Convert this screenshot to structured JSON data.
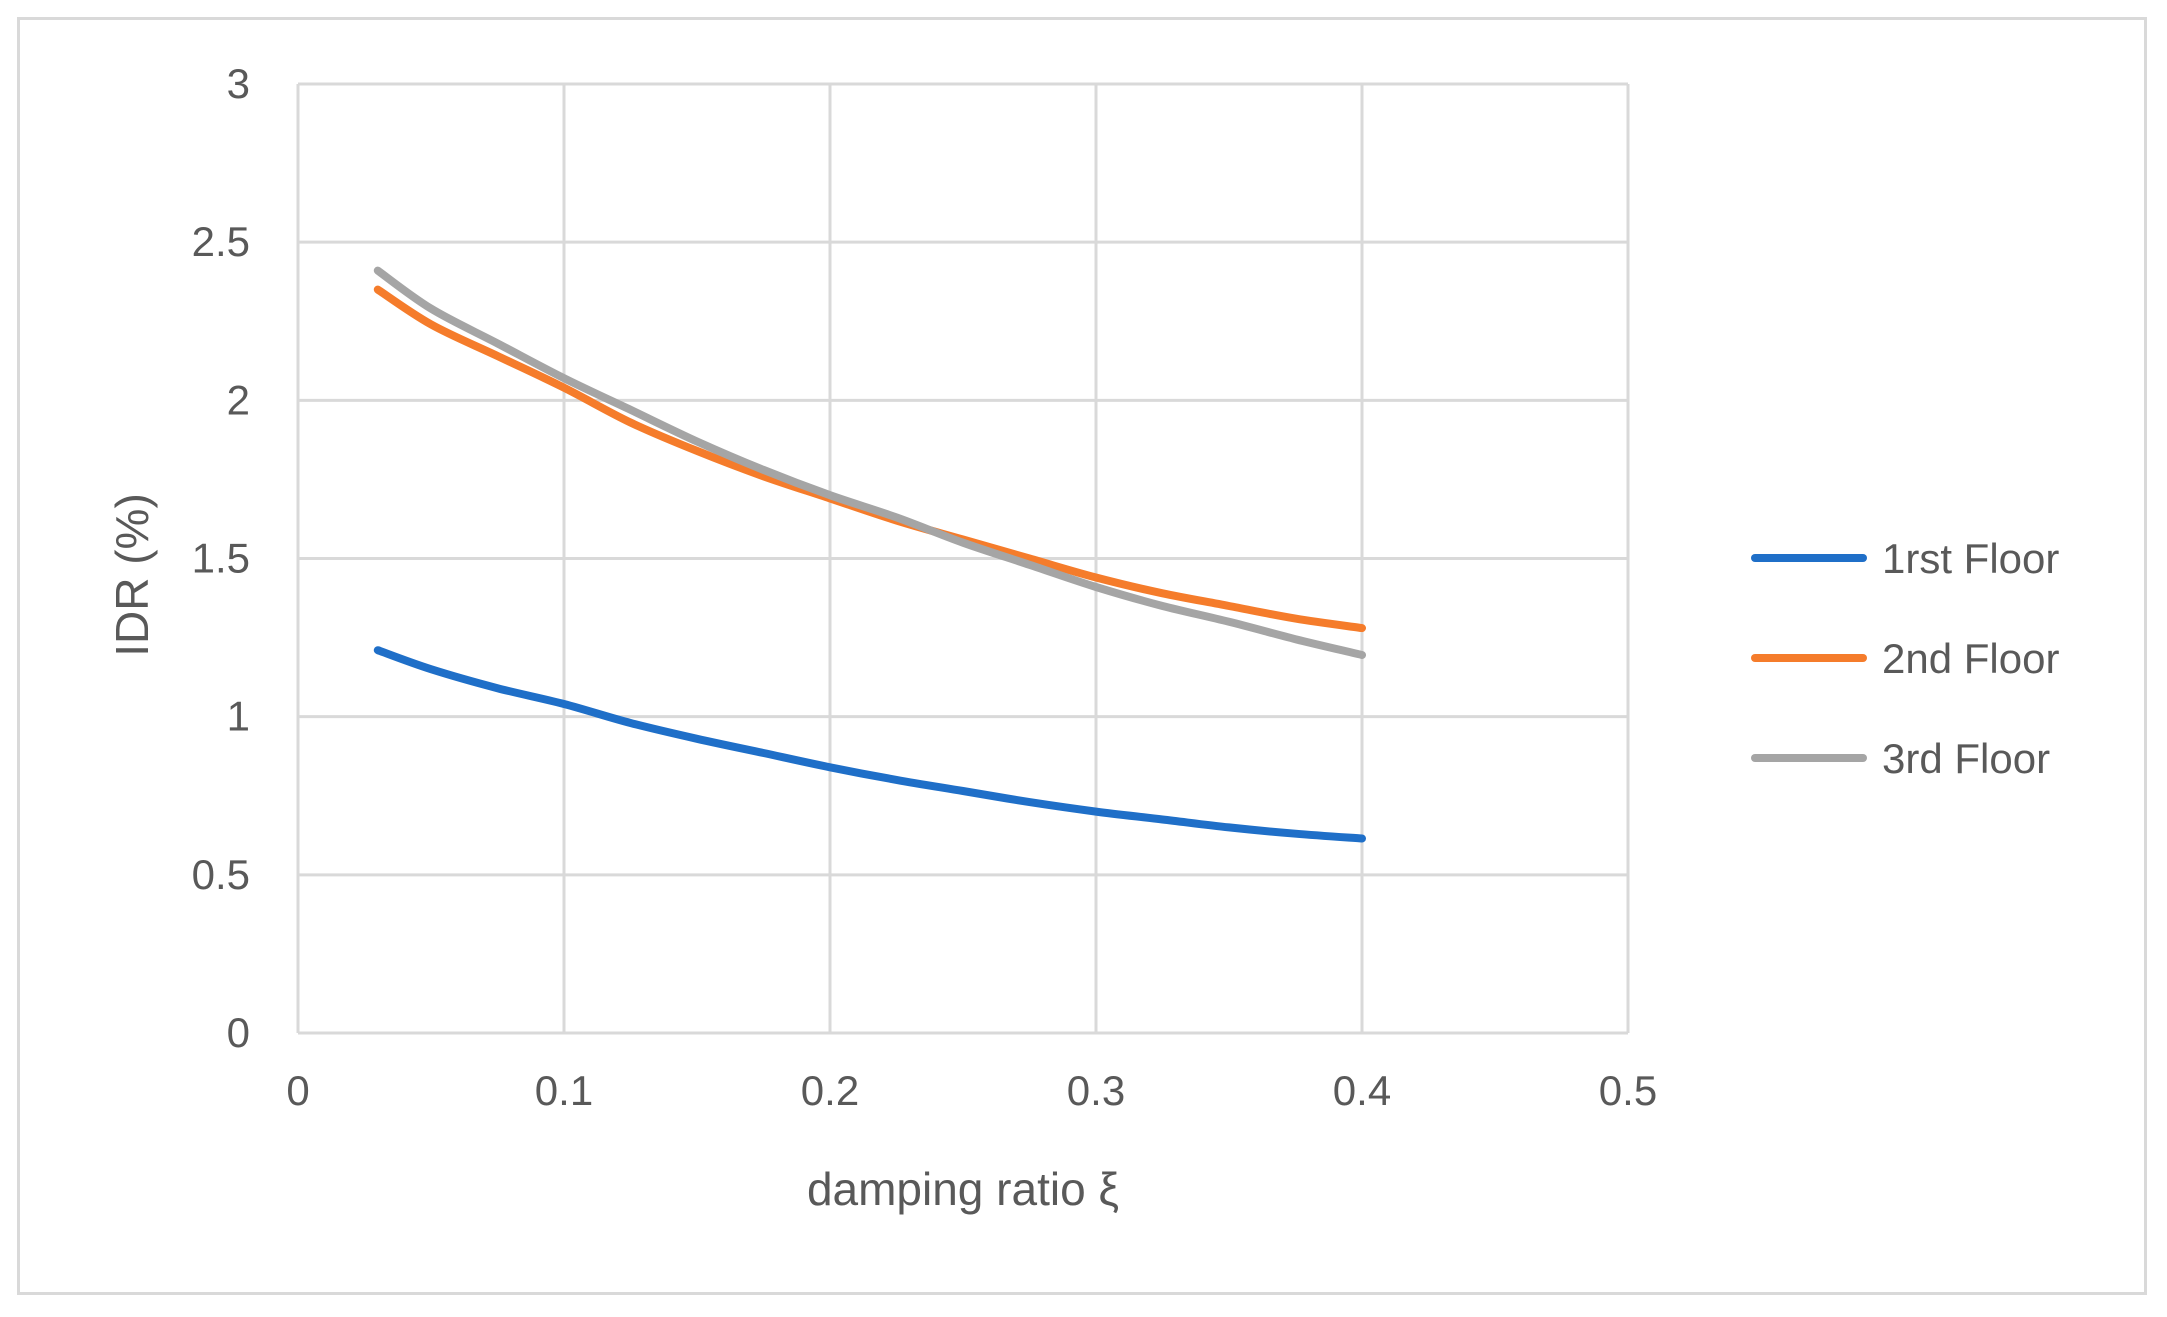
{
  "chart_data": {
    "type": "line",
    "title": "",
    "xlabel": "damping ratio ξ",
    "ylabel": "IDR (%)",
    "xlim": [
      0,
      0.5
    ],
    "ylim": [
      0,
      3
    ],
    "x_ticks": [
      "0",
      "0.1",
      "0.2",
      "0.3",
      "0.4",
      "0.5"
    ],
    "y_ticks": [
      "0",
      "0.5",
      "1",
      "1.5",
      "2",
      "2.5",
      "3"
    ],
    "x_tick_values": [
      0,
      0.1,
      0.2,
      0.3,
      0.4,
      0.5
    ],
    "y_tick_values": [
      0,
      0.5,
      1,
      1.5,
      2,
      2.5,
      3
    ],
    "grid": true,
    "legend_position": "right",
    "x": [
      0.03,
      0.05,
      0.075,
      0.1,
      0.125,
      0.15,
      0.175,
      0.2,
      0.225,
      0.25,
      0.275,
      0.3,
      0.325,
      0.35,
      0.375,
      0.4
    ],
    "series": [
      {
        "name": "1rst Floor",
        "color": "#1f6fc8",
        "values": [
          1.21,
          1.15,
          1.09,
          1.04,
          0.98,
          0.93,
          0.885,
          0.84,
          0.8,
          0.765,
          0.73,
          0.7,
          0.675,
          0.65,
          0.63,
          0.615
        ]
      },
      {
        "name": "2nd Floor",
        "color": "#f57c2b",
        "values": [
          2.35,
          2.24,
          2.14,
          2.04,
          1.93,
          1.84,
          1.76,
          1.69,
          1.62,
          1.56,
          1.5,
          1.44,
          1.39,
          1.35,
          1.31,
          1.28
        ]
      },
      {
        "name": "3rd Floor",
        "color": "#a5a5a5",
        "values": [
          2.41,
          2.29,
          2.18,
          2.07,
          1.97,
          1.87,
          1.78,
          1.7,
          1.63,
          1.55,
          1.48,
          1.41,
          1.35,
          1.3,
          1.245,
          1.195
        ]
      }
    ]
  }
}
